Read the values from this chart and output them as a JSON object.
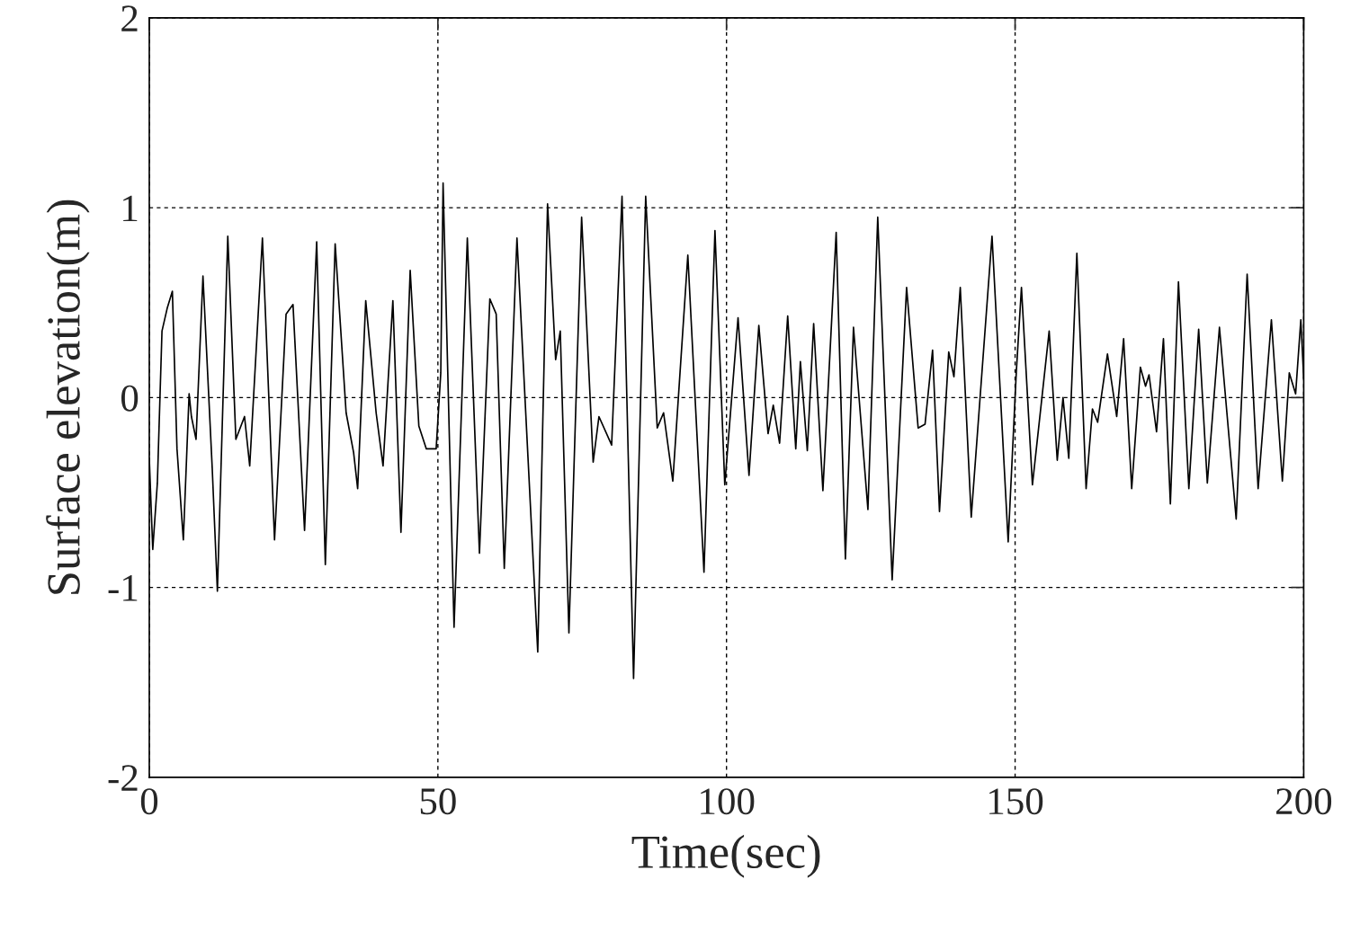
{
  "chart_data": {
    "type": "line",
    "xlabel": "Time(sec)",
    "ylabel": "Surface elevation(m)",
    "xlim": [
      0,
      200
    ],
    "ylim": [
      -2,
      2
    ],
    "xticks": [
      0,
      50,
      100,
      150,
      200
    ],
    "yticks": [
      -2,
      -1,
      0,
      1,
      2
    ],
    "grid": true,
    "marker": "none",
    "line_style": "solid",
    "series": [
      {
        "color": "#000000",
        "x": [
          0,
          0.6,
          1.4,
          2.2,
          3.1,
          4.0,
          4.8,
          5.9,
          6.9,
          7.3,
          8.1,
          9.3,
          10.9,
          11.8,
          13.6,
          15.0,
          16.5,
          17.4,
          19.6,
          21.7,
          23.7,
          24.9,
          26.9,
          29.0,
          30.5,
          32.2,
          34.1,
          35.4,
          36.1,
          37.5,
          39.3,
          40.5,
          42.2,
          43.6,
          45.2,
          46.7,
          48.0,
          49.7,
          50.5,
          50.9,
          52.8,
          55.1,
          57.2,
          59.0,
          60.1,
          61.5,
          63.7,
          67.3,
          69.0,
          70.4,
          71.2,
          72.7,
          74.9,
          76.9,
          77.9,
          80.1,
          81.9,
          83.9,
          86.0,
          88.0,
          89.1,
          90.7,
          93.3,
          96.1,
          98.0,
          99.7,
          102.0,
          103.9,
          105.6,
          107.2,
          108.1,
          109.2,
          110.6,
          112.0,
          112.8,
          114.0,
          115.1,
          116.7,
          119.0,
          120.6,
          122.0,
          124.5,
          126.2,
          128.7,
          131.2,
          133.2,
          134.4,
          135.7,
          136.9,
          138.5,
          139.4,
          140.5,
          142.4,
          146.0,
          148.8,
          150.2,
          151.1,
          153.0,
          155.9,
          157.3,
          158.3,
          159.3,
          160.7,
          162.3,
          163.4,
          164.3,
          166.0,
          167.6,
          168.8,
          170.2,
          171.7,
          172.6,
          173.2,
          174.5,
          175.7,
          176.9,
          178.3,
          180.1,
          181.8,
          183.3,
          185.4,
          188.3,
          190.2,
          192.1,
          194.4,
          196.3,
          197.5,
          198.6,
          199.5,
          200
        ],
        "values": [
          -0.32,
          -0.8,
          -0.45,
          0.35,
          0.47,
          0.56,
          -0.27,
          -0.75,
          0.02,
          -0.1,
          -0.22,
          0.64,
          -0.37,
          -1.02,
          0.85,
          -0.22,
          -0.1,
          -0.36,
          0.84,
          -0.75,
          0.44,
          0.49,
          -0.7,
          0.82,
          -0.88,
          0.81,
          -0.08,
          -0.29,
          -0.48,
          0.51,
          -0.08,
          -0.36,
          0.51,
          -0.71,
          0.67,
          -0.15,
          -0.27,
          -0.27,
          0.13,
          1.13,
          -1.21,
          0.84,
          -0.82,
          0.52,
          0.44,
          -0.9,
          0.84,
          -1.34,
          1.02,
          0.2,
          0.35,
          -1.24,
          0.95,
          -0.34,
          -0.1,
          -0.25,
          1.06,
          -1.48,
          1.06,
          -0.16,
          -0.08,
          -0.44,
          0.75,
          -0.92,
          0.88,
          -0.46,
          0.42,
          -0.41,
          0.38,
          -0.19,
          -0.04,
          -0.24,
          0.43,
          -0.27,
          0.19,
          -0.28,
          0.39,
          -0.49,
          0.87,
          -0.85,
          0.37,
          -0.59,
          0.95,
          -0.96,
          0.58,
          -0.16,
          -0.14,
          0.25,
          -0.6,
          0.24,
          0.11,
          0.58,
          -0.63,
          0.85,
          -0.76,
          0.13,
          0.58,
          -0.46,
          0.35,
          -0.33,
          0,
          -0.32,
          0.76,
          -0.48,
          -0.06,
          -0.13,
          0.23,
          -0.1,
          0.31,
          -0.48,
          0.16,
          0.06,
          0.12,
          -0.18,
          0.31,
          -0.56,
          0.61,
          -0.48,
          0.36,
          -0.45,
          0.37,
          -0.64,
          0.65,
          -0.48,
          0.41,
          -0.44,
          0.13,
          0.02,
          0.41,
          0.1
        ]
      }
    ]
  }
}
